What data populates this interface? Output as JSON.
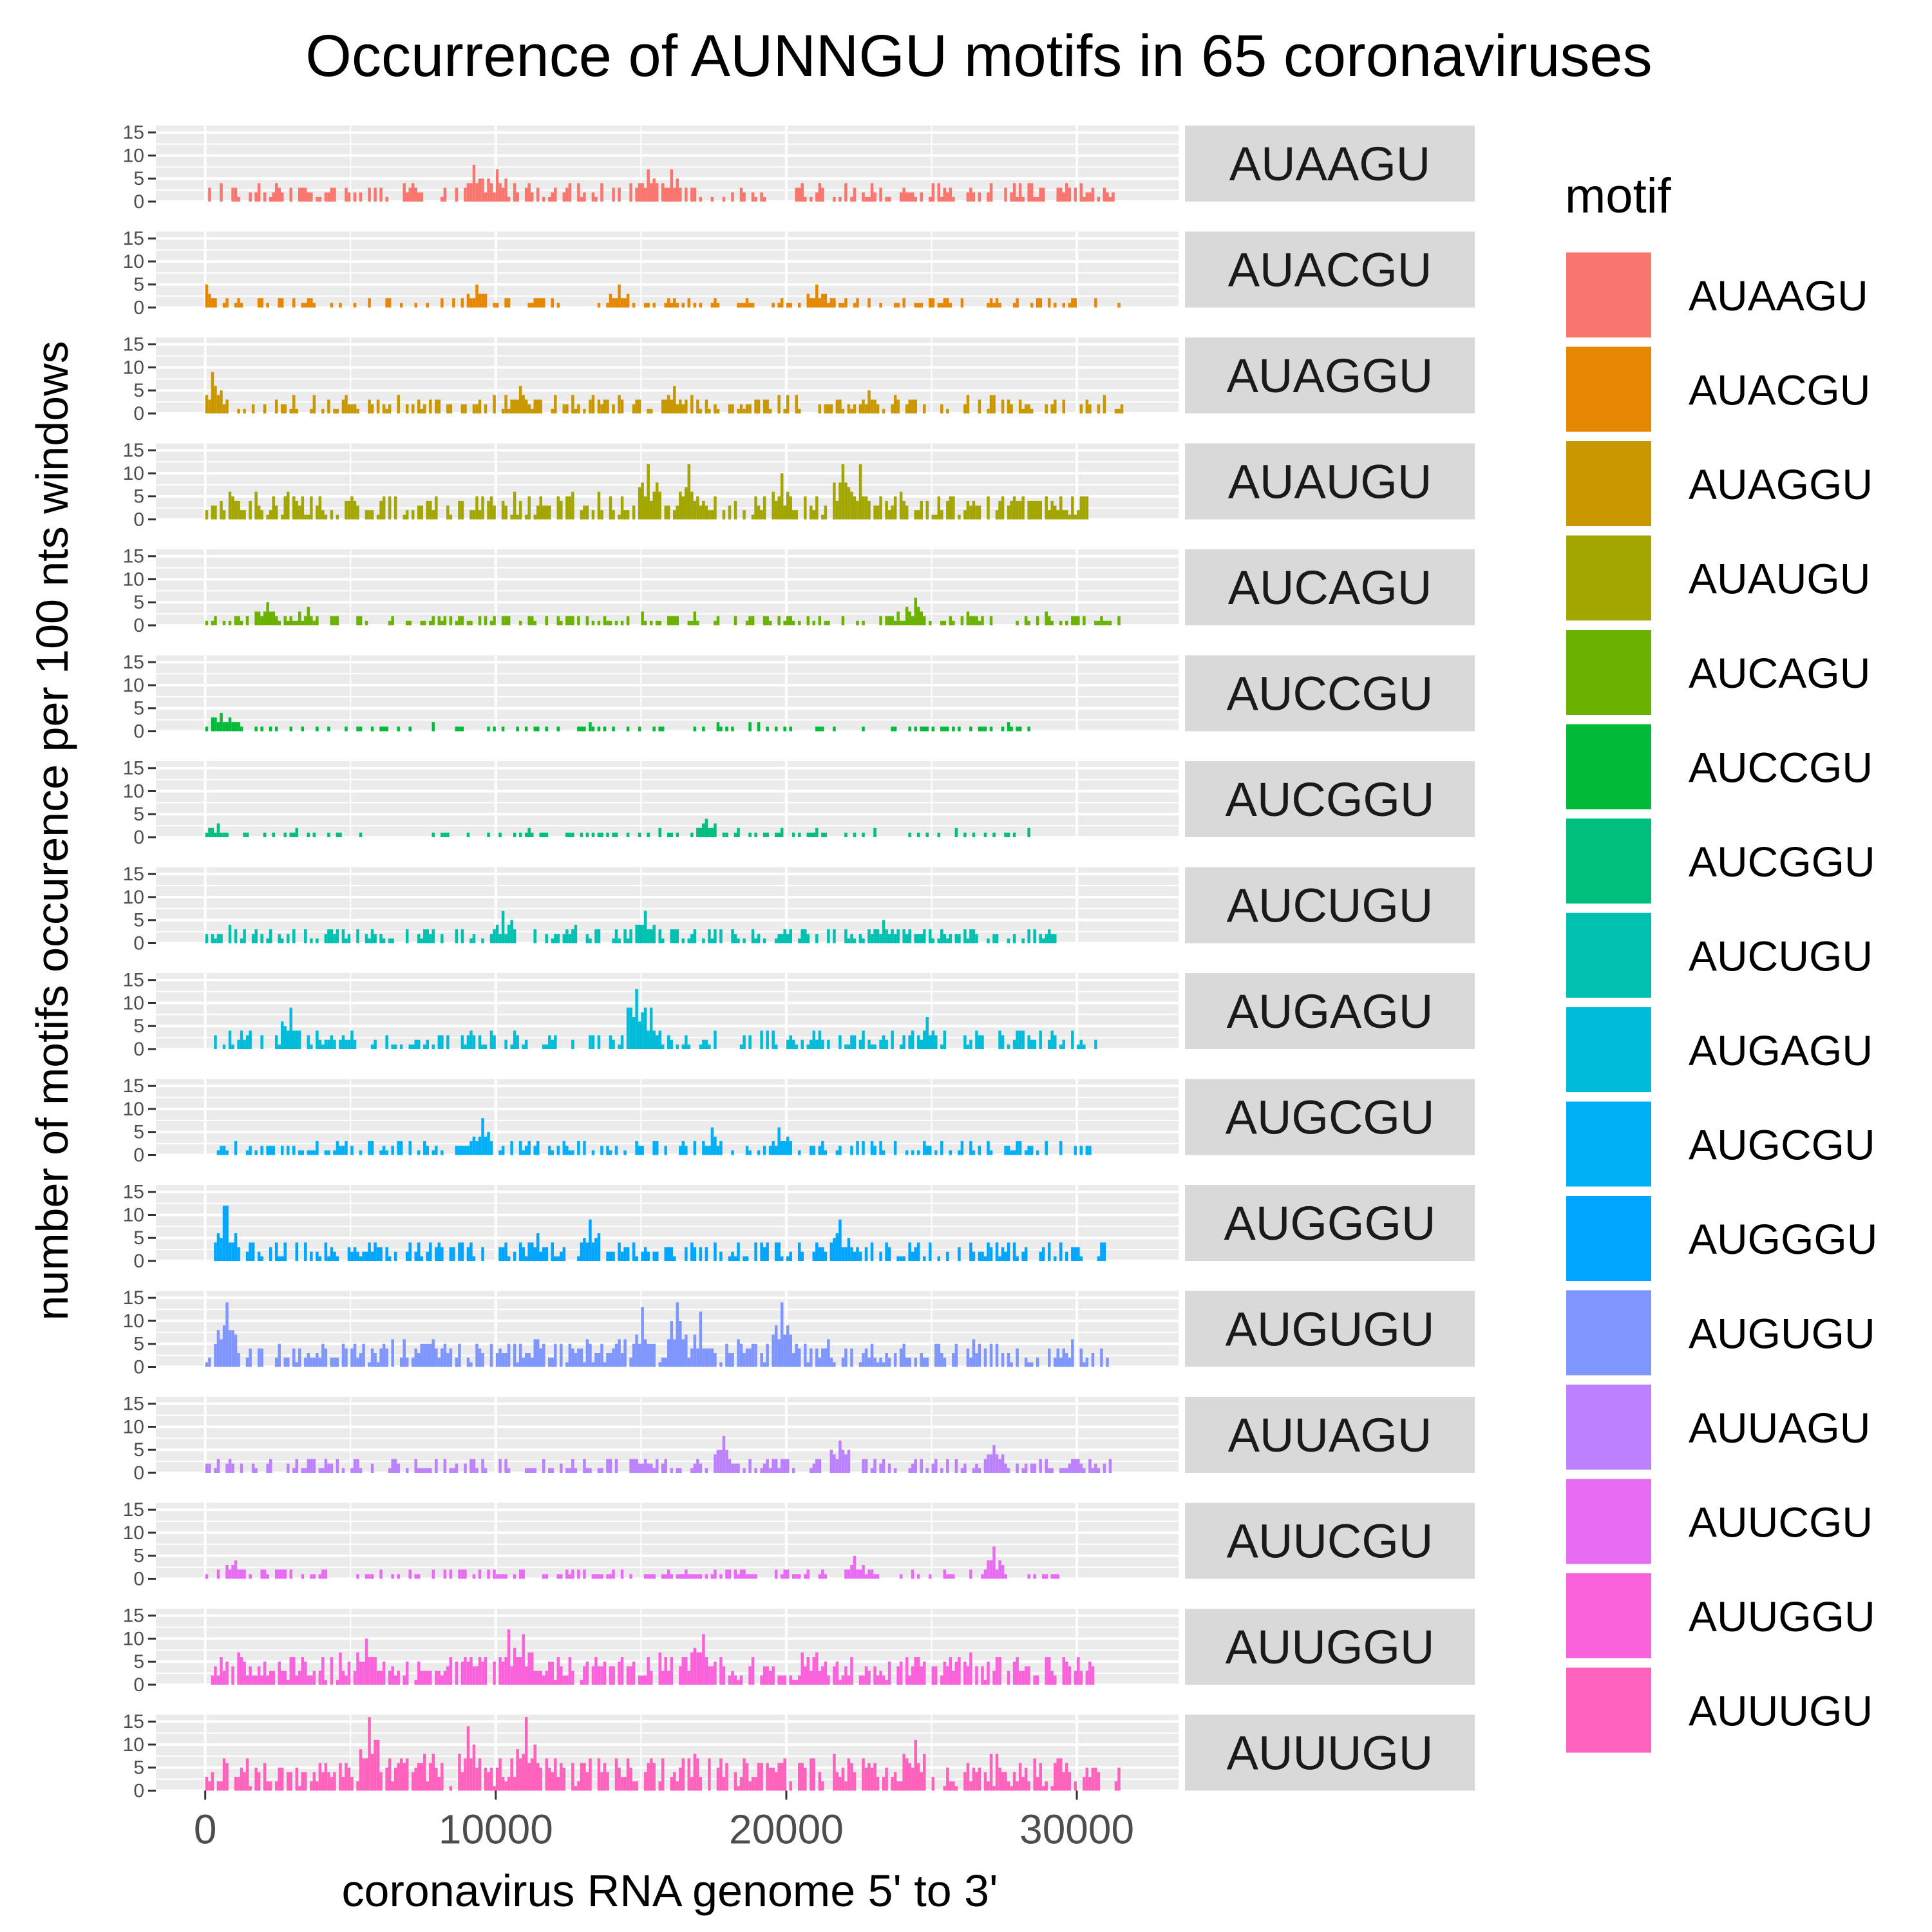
{
  "chart_data": {
    "type": "bar",
    "title": "Occurrence of AUNNGU motifs in 65 coronaviruses",
    "xlabel": "coronavirus RNA genome 5' to 3'",
    "ylabel": "number of motifs occurence per 100 nts windows",
    "xlim": [
      -1700,
      33500
    ],
    "ylim": [
      0,
      16.5
    ],
    "x_ticks": [
      0,
      10000,
      20000,
      30000
    ],
    "x_tick_labels": [
      "0",
      "10000",
      "20000",
      "30000"
    ],
    "y_ticks": [
      0,
      5,
      10,
      15
    ],
    "y_tick_labels": [
      "0",
      "5",
      "10",
      "15"
    ],
    "grid": true,
    "facets": "rows",
    "bin_width": 100,
    "legend": {
      "title": "motif",
      "position": "right"
    },
    "series": [
      {
        "name": "AUAAGU",
        "color": "#F8766D",
        "extent": [
          0,
          31500
        ],
        "peaks": [
          [
            9200,
            8
          ],
          [
            15200,
            7
          ],
          [
            16000,
            7
          ],
          [
            10000,
            7
          ]
        ],
        "level": 2.6,
        "density": 0.55
      },
      {
        "name": "AUACGU",
        "color": "#E58700",
        "extent": [
          0,
          31500
        ],
        "peaks": [
          [
            9300,
            5
          ],
          [
            14200,
            5
          ],
          [
            21000,
            5
          ],
          [
            0,
            5
          ]
        ],
        "level": 1.4,
        "density": 0.4
      },
      {
        "name": "AUAGGU",
        "color": "#C99800",
        "extent": [
          0,
          31700
        ],
        "peaks": [
          [
            200,
            9
          ],
          [
            10800,
            6
          ],
          [
            16100,
            6
          ],
          [
            22800,
            5
          ]
        ],
        "level": 2.4,
        "density": 0.55
      },
      {
        "name": "AUAUGU",
        "color": "#A3A500",
        "extent": [
          0,
          30400
        ],
        "peaks": [
          [
            15200,
            12
          ],
          [
            16600,
            12
          ],
          [
            19800,
            10
          ],
          [
            21900,
            12
          ],
          [
            22500,
            12
          ]
        ],
        "level": 3.6,
        "density": 0.7
      },
      {
        "name": "AUCAGU",
        "color": "#6BB100",
        "extent": [
          0,
          31500
        ],
        "peaks": [
          [
            2100,
            5
          ],
          [
            24400,
            6
          ],
          [
            3500,
            4
          ]
        ],
        "level": 1.6,
        "density": 0.5
      },
      {
        "name": "AUCCGU",
        "color": "#00BA38",
        "extent": [
          0,
          29000
        ],
        "peaks": [
          [
            500,
            4
          ],
          [
            800,
            3
          ]
        ],
        "level": 1.0,
        "density": 0.3
      },
      {
        "name": "AUCGGU",
        "color": "#00BF7D",
        "extent": [
          0,
          28500
        ],
        "peaks": [
          [
            17200,
            4
          ],
          [
            400,
            3
          ]
        ],
        "level": 1.0,
        "density": 0.28
      },
      {
        "name": "AUCUGU",
        "color": "#00C0AF",
        "extent": [
          0,
          29500
        ],
        "peaks": [
          [
            10200,
            7
          ],
          [
            15100,
            7
          ],
          [
            23300,
            5
          ]
        ],
        "level": 2.2,
        "density": 0.55
      },
      {
        "name": "AUGAGU",
        "color": "#00BCD8",
        "extent": [
          200,
          31000
        ],
        "peaks": [
          [
            14800,
            13
          ],
          [
            2900,
            9
          ],
          [
            15300,
            9
          ],
          [
            24800,
            7
          ]
        ],
        "level": 2.6,
        "density": 0.55
      },
      {
        "name": "AUGCGU",
        "color": "#00B0F6",
        "extent": [
          400,
          30500
        ],
        "peaks": [
          [
            9500,
            8
          ],
          [
            17400,
            6
          ],
          [
            19700,
            6
          ]
        ],
        "level": 2.2,
        "density": 0.5
      },
      {
        "name": "AUGGGU",
        "color": "#00A5FF",
        "extent": [
          200,
          31000
        ],
        "peaks": [
          [
            650,
            12
          ],
          [
            13200,
            9
          ],
          [
            21800,
            9
          ],
          [
            11400,
            6
          ]
        ],
        "level": 2.8,
        "density": 0.6
      },
      {
        "name": "AUGUGU",
        "color": "#7F96FF",
        "extent": [
          0,
          31200
        ],
        "peaks": [
          [
            700,
            14
          ],
          [
            16200,
            14
          ],
          [
            19800,
            14
          ],
          [
            15000,
            13
          ],
          [
            17000,
            12
          ]
        ],
        "level": 3.6,
        "density": 0.72
      },
      {
        "name": "AUUAGU",
        "color": "#BC81FF",
        "extent": [
          0,
          31300
        ],
        "peaks": [
          [
            17800,
            8
          ],
          [
            21800,
            7
          ],
          [
            27100,
            6
          ]
        ],
        "level": 2.2,
        "density": 0.55
      },
      {
        "name": "AUUCGU",
        "color": "#E76BF3",
        "extent": [
          0,
          29500
        ],
        "peaks": [
          [
            27100,
            7
          ],
          [
            22300,
            5
          ],
          [
            1000,
            4
          ]
        ],
        "level": 1.4,
        "density": 0.45
      },
      {
        "name": "AUUGGU",
        "color": "#FA62DB",
        "extent": [
          200,
          30600
        ],
        "peaks": [
          [
            10400,
            12
          ],
          [
            10900,
            11
          ],
          [
            17100,
            11
          ],
          [
            5500,
            10
          ]
        ],
        "level": 4.2,
        "density": 0.75
      },
      {
        "name": "AUUUGU",
        "color": "#FF62BC",
        "extent": [
          0,
          31500
        ],
        "peaks": [
          [
            5600,
            16
          ],
          [
            11000,
            16
          ],
          [
            9000,
            14
          ],
          [
            24400,
            11
          ]
        ],
        "level": 4.8,
        "density": 0.78
      }
    ]
  }
}
